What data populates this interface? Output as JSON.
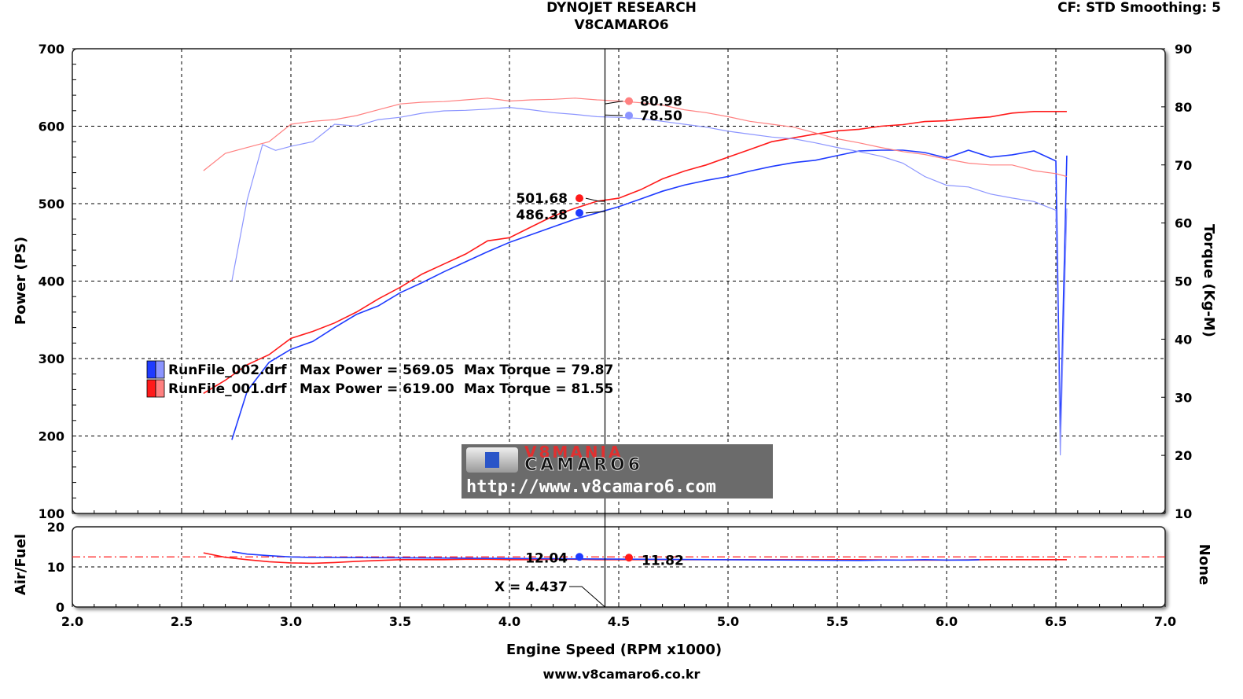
{
  "header": {
    "title": "DYNOJET RESEARCH",
    "subtitle": "V8CAMARO6",
    "cf_info": "CF: STD  Smoothing: 5"
  },
  "footer": {
    "url": "www.v8camaro6.co.kr"
  },
  "logo": {
    "brand_top": "V8MANIA",
    "brand_main": "CAMARO6",
    "url": "http://www.v8camaro6.com"
  },
  "cursor": {
    "x_label": "X = 4.437",
    "torque_run001": "80.98",
    "torque_run002": "78.50",
    "power_run001": "501.68",
    "power_run002": "486.38",
    "afr_run002": "12.04",
    "afr_run001": "11.82"
  },
  "legend": [
    {
      "file": "RunFile_002.drf",
      "max_power": "Max Power = 569.05",
      "max_torque": "Max Torque = 79.87",
      "color": "#1f3bff",
      "light": "#8c95ff"
    },
    {
      "file": "RunFile_001.drf",
      "max_power": "Max Power = 619.00",
      "max_torque": "Max Torque = 81.55",
      "color": "#ff1a1a",
      "light": "#ff8080"
    }
  ],
  "colors": {
    "run002": "#1f3bff",
    "run002_torque": "#8c95ff",
    "run001": "#ff1a1a",
    "run001_torque": "#ff8080"
  },
  "chart_data": [
    {
      "type": "line",
      "title": "DYNOJET RESEARCH",
      "subtitle": "V8CAMARO6",
      "xlabel": "Engine Speed (RPM x1000)",
      "ylabel": "Power (PS)",
      "y2label": "Torque (Kg-M)",
      "xlim": [
        2.0,
        7.0
      ],
      "ylim": [
        100,
        700
      ],
      "y2lim": [
        10,
        90
      ],
      "x_ticks": [
        "2.0",
        "2.5",
        "3.0",
        "3.5",
        "4.0",
        "4.5",
        "5.0",
        "5.5",
        "6.0",
        "6.5",
        "7.0"
      ],
      "y_ticks": [
        "100",
        "200",
        "300",
        "400",
        "500",
        "600",
        "700"
      ],
      "y2_ticks": [
        "10",
        "20",
        "30",
        "40",
        "50",
        "60",
        "70",
        "80",
        "90"
      ],
      "grid": true,
      "series": [
        {
          "name": "RunFile_001.drf",
          "quantity": "power",
          "axis": "left",
          "x": [
            2.6,
            2.7,
            2.8,
            2.9,
            3.0,
            3.1,
            3.2,
            3.3,
            3.4,
            3.5,
            3.6,
            3.7,
            3.8,
            3.9,
            4.0,
            4.1,
            4.2,
            4.3,
            4.4,
            4.5,
            4.6,
            4.7,
            4.8,
            4.9,
            5.0,
            5.1,
            5.2,
            5.3,
            5.4,
            5.5,
            5.6,
            5.7,
            5.8,
            5.9,
            6.0,
            6.1,
            6.2,
            6.3,
            6.4,
            6.5,
            6.55
          ],
          "y": [
            255,
            272,
            292,
            305,
            326,
            335,
            346,
            360,
            377,
            392,
            409,
            422,
            435,
            452,
            456,
            470,
            484,
            494,
            503,
            507,
            518,
            532,
            542,
            550,
            560,
            570,
            580,
            585,
            590,
            594,
            596,
            600,
            602,
            606,
            607,
            610,
            612,
            617,
            619,
            619,
            619
          ]
        },
        {
          "name": "RunFile_002.drf",
          "quantity": "power",
          "axis": "left",
          "x": [
            2.73,
            2.8,
            2.9,
            3.0,
            3.1,
            3.2,
            3.3,
            3.4,
            3.5,
            3.6,
            3.7,
            3.8,
            3.9,
            4.0,
            4.1,
            4.2,
            4.3,
            4.4,
            4.5,
            4.6,
            4.7,
            4.8,
            4.9,
            5.0,
            5.1,
            5.2,
            5.3,
            5.4,
            5.5,
            5.6,
            5.7,
            5.8,
            5.9,
            6.0,
            6.1,
            6.2,
            6.3,
            6.4,
            6.5,
            6.52,
            6.55
          ],
          "y": [
            195,
            258,
            295,
            312,
            322,
            340,
            357,
            368,
            385,
            398,
            412,
            425,
            438,
            450,
            460,
            470,
            480,
            488,
            496,
            506,
            516,
            524,
            530,
            535,
            542,
            548,
            553,
            556,
            562,
            568,
            569,
            569,
            566,
            559,
            569,
            560,
            563,
            568,
            555,
            200,
            562
          ]
        },
        {
          "name": "RunFile_001.drf",
          "quantity": "torque",
          "axis": "right",
          "x": [
            2.6,
            2.7,
            2.8,
            2.9,
            3.0,
            3.1,
            3.2,
            3.3,
            3.4,
            3.5,
            3.6,
            3.7,
            3.8,
            3.9,
            4.0,
            4.1,
            4.2,
            4.3,
            4.4,
            4.5,
            4.6,
            4.7,
            4.8,
            4.9,
            5.0,
            5.1,
            5.2,
            5.3,
            5.4,
            5.5,
            5.6,
            5.7,
            5.8,
            5.9,
            6.0,
            6.1,
            6.2,
            6.3,
            6.4,
            6.5,
            6.55
          ],
          "y": [
            69,
            72,
            73,
            74,
            77,
            77.5,
            77.8,
            78.5,
            79.5,
            80.5,
            80.8,
            80.9,
            81.2,
            81.5,
            81,
            81.2,
            81.3,
            81.5,
            81.2,
            81,
            80.7,
            80.3,
            79.5,
            79,
            78.3,
            77.5,
            77,
            76.5,
            75.5,
            74.5,
            73.8,
            73,
            72.3,
            71.8,
            71,
            70.3,
            70,
            70,
            69,
            68.5,
            68
          ]
        },
        {
          "name": "RunFile_002.drf",
          "quantity": "torque",
          "axis": "right",
          "x": [
            2.73,
            2.8,
            2.87,
            2.93,
            3.0,
            3.1,
            3.2,
            3.3,
            3.4,
            3.5,
            3.6,
            3.7,
            3.8,
            3.9,
            4.0,
            4.1,
            4.2,
            4.3,
            4.4,
            4.5,
            4.6,
            4.7,
            4.8,
            4.9,
            5.0,
            5.1,
            5.2,
            5.3,
            5.4,
            5.5,
            5.6,
            5.7,
            5.8,
            5.9,
            6.0,
            6.1,
            6.2,
            6.3,
            6.4,
            6.5,
            6.52,
            6.55
          ],
          "y": [
            50,
            64,
            73.5,
            72.5,
            73.2,
            74,
            77,
            76.7,
            77.8,
            78.2,
            78.9,
            79.3,
            79.4,
            79.6,
            79.9,
            79.5,
            79,
            78.7,
            78.3,
            78.2,
            78,
            77.5,
            77,
            76.5,
            75.8,
            75.3,
            74.8,
            74.5,
            73.8,
            73,
            72.3,
            71.5,
            70.3,
            68,
            66.5,
            66.2,
            65,
            64.3,
            63.7,
            62.2,
            20,
            62.5
          ]
        }
      ]
    },
    {
      "type": "line",
      "ylabel": "Air/Fuel",
      "y2label": "None",
      "xlim": [
        2.0,
        7.0
      ],
      "ylim": [
        0,
        20
      ],
      "y_ticks": [
        "0",
        "10",
        "20"
      ],
      "reference_line": 12.5,
      "grid": true,
      "series": [
        {
          "name": "RunFile_001.drf",
          "quantity": "air_fuel",
          "x": [
            2.6,
            2.7,
            2.8,
            2.9,
            3.0,
            3.1,
            3.2,
            3.3,
            3.4,
            3.5,
            3.6,
            3.7,
            3.8,
            3.9,
            4.0,
            4.1,
            4.2,
            4.3,
            4.4,
            4.5,
            4.6,
            4.7,
            4.8,
            5.5,
            5.6,
            5.8,
            6.0,
            6.2,
            6.4,
            6.5,
            6.55
          ],
          "y": [
            13.5,
            12.4,
            11.8,
            11.3,
            11,
            10.9,
            11.1,
            11.4,
            11.6,
            11.8,
            11.8,
            11.8,
            11.9,
            11.9,
            11.8,
            11.8,
            11.9,
            11.9,
            11.8,
            11.8,
            11.8,
            11.8,
            11.8,
            11.8,
            11.8,
            11.7,
            11.7,
            11.8,
            11.8,
            11.8,
            11.8
          ]
        },
        {
          "name": "RunFile_002.drf",
          "quantity": "air_fuel",
          "x": [
            2.73,
            2.8,
            2.9,
            3.0,
            3.07,
            5.6,
            5.7,
            5.8,
            5.9,
            6.0,
            6.1,
            6.15
          ],
          "y": [
            13.8,
            13.2,
            12.8,
            12.5,
            12.4,
            11.6,
            11.7,
            11.7,
            11.8,
            11.7,
            11.7,
            11.8
          ]
        }
      ]
    }
  ],
  "axes": {
    "xlabel": "Engine Speed (RPM x1000)",
    "ylabel_main": "Power (PS)",
    "ylabel_right": "Torque (Kg-M)",
    "ylabel_afr": "Air/Fuel",
    "ylabel_afr_right": "None"
  }
}
